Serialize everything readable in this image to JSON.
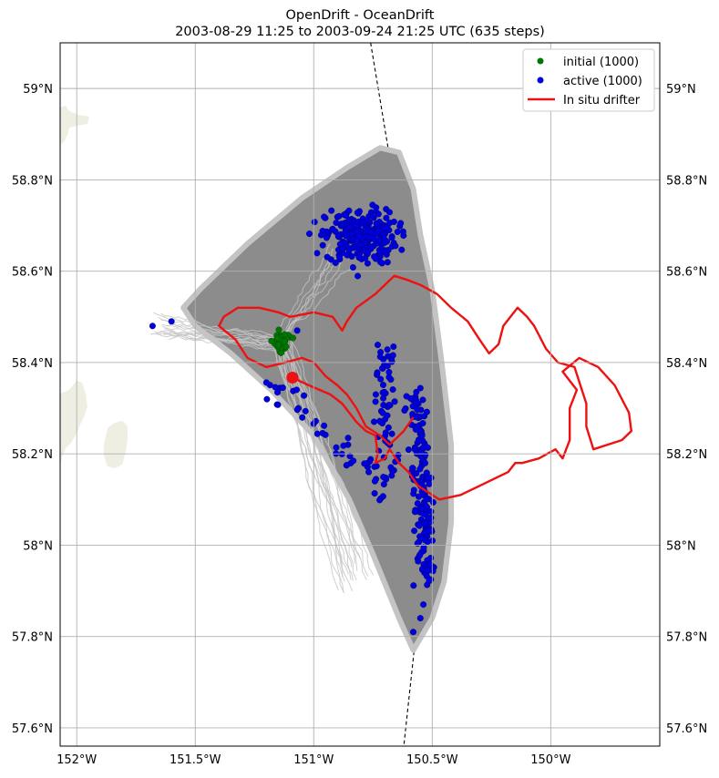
{
  "chart_data": {
    "type": "map-trajectory",
    "title_line1": "OpenDrift - OceanDrift",
    "title_line2": "2003-08-29 11:25 to 2003-09-24 21:25 UTC (635 steps)",
    "lon_range": [
      -152.07,
      -149.54
    ],
    "lat_range": [
      57.56,
      59.1
    ],
    "x_ticks": [
      {
        "value": -152.0,
        "label": "152°W"
      },
      {
        "value": -151.5,
        "label": "151.5°W"
      },
      {
        "value": -151.0,
        "label": "151°W"
      },
      {
        "value": -150.5,
        "label": "150.5°W"
      },
      {
        "value": -150.0,
        "label": "150°W"
      }
    ],
    "y_ticks": [
      {
        "value": 57.6,
        "label": "57.6°N"
      },
      {
        "value": 57.8,
        "label": "57.8°N"
      },
      {
        "value": 58.0,
        "label": "58°N"
      },
      {
        "value": 58.2,
        "label": "58.2°N"
      },
      {
        "value": 58.4,
        "label": "58.4°N"
      },
      {
        "value": 58.6,
        "label": "58.6°N"
      },
      {
        "value": 58.8,
        "label": "58.8°N"
      },
      {
        "value": 59.0,
        "label": "59°N"
      }
    ],
    "grid": true,
    "legend_position": "top-right",
    "legend": [
      {
        "label": "initial (1000)",
        "color": "#007800",
        "kind": "dot"
      },
      {
        "label": "active (1000)",
        "color": "#0000dd",
        "kind": "dot"
      },
      {
        "label": "In situ drifter",
        "color": "#ee1111",
        "kind": "line"
      }
    ],
    "colors": {
      "trajectory": "#8c8c8c",
      "trajectory_light": "#c4c4c4",
      "land": "#eeeee2",
      "boundary": "#000000"
    },
    "initial_cluster": {
      "center_lon": -151.14,
      "center_lat": 58.445,
      "count": 1000
    },
    "drifter_end": {
      "lon": -151.09,
      "lat": 58.367
    },
    "spread_envelope": [
      [
        -151.55,
        58.52
      ],
      [
        -151.48,
        58.56
      ],
      [
        -151.28,
        58.66
      ],
      [
        -151.05,
        58.76
      ],
      [
        -150.85,
        58.83
      ],
      [
        -150.72,
        58.87
      ],
      [
        -150.64,
        58.86
      ],
      [
        -150.58,
        58.78
      ],
      [
        -150.55,
        58.68
      ],
      [
        -150.5,
        58.56
      ],
      [
        -150.46,
        58.4
      ],
      [
        -150.42,
        58.22
      ],
      [
        -150.42,
        58.05
      ],
      [
        -150.45,
        57.92
      ],
      [
        -150.5,
        57.84
      ],
      [
        -150.58,
        57.77
      ],
      [
        -150.64,
        57.84
      ],
      [
        -150.75,
        57.98
      ],
      [
        -150.85,
        58.1
      ],
      [
        -151.0,
        58.24
      ],
      [
        -151.18,
        58.34
      ],
      [
        -151.35,
        58.42
      ],
      [
        -151.5,
        58.48
      ]
    ],
    "in_situ_drifter_track": [
      [
        -151.09,
        58.367
      ],
      [
        -151.02,
        58.35
      ],
      [
        -150.93,
        58.33
      ],
      [
        -150.88,
        58.31
      ],
      [
        -150.82,
        58.27
      ],
      [
        -150.78,
        58.25
      ],
      [
        -150.74,
        58.24
      ],
      [
        -150.73,
        58.2
      ],
      [
        -150.74,
        58.18
      ],
      [
        -150.7,
        58.19
      ],
      [
        -150.68,
        58.21
      ],
      [
        -150.64,
        58.18
      ],
      [
        -150.6,
        58.16
      ],
      [
        -150.56,
        58.13
      ],
      [
        -150.5,
        58.11
      ],
      [
        -150.47,
        58.1
      ],
      [
        -150.38,
        58.11
      ],
      [
        -150.3,
        58.13
      ],
      [
        -150.22,
        58.15
      ],
      [
        -150.18,
        58.16
      ],
      [
        -150.15,
        58.18
      ],
      [
        -150.12,
        58.18
      ],
      [
        -150.05,
        58.19
      ],
      [
        -149.98,
        58.21
      ],
      [
        -149.95,
        58.19
      ],
      [
        -149.92,
        58.23
      ],
      [
        -149.92,
        58.3
      ],
      [
        -149.89,
        58.34
      ],
      [
        -149.92,
        58.36
      ],
      [
        -149.95,
        58.38
      ],
      [
        -149.88,
        58.41
      ],
      [
        -149.8,
        58.39
      ],
      [
        -149.73,
        58.35
      ],
      [
        -149.67,
        58.29
      ],
      [
        -149.66,
        58.25
      ],
      [
        -149.7,
        58.23
      ],
      [
        -149.76,
        58.22
      ],
      [
        -149.82,
        58.21
      ],
      [
        -149.85,
        58.26
      ],
      [
        -149.85,
        58.31
      ],
      [
        -149.9,
        58.39
      ],
      [
        -149.97,
        58.4
      ],
      [
        -150.02,
        58.43
      ],
      [
        -150.07,
        58.48
      ],
      [
        -150.1,
        58.5
      ],
      [
        -150.14,
        58.52
      ],
      [
        -150.2,
        58.48
      ],
      [
        -150.22,
        58.44
      ],
      [
        -150.26,
        58.42
      ],
      [
        -150.3,
        58.45
      ],
      [
        -150.35,
        58.49
      ],
      [
        -150.42,
        58.52
      ],
      [
        -150.48,
        58.55
      ],
      [
        -150.55,
        58.57
      ],
      [
        -150.6,
        58.58
      ],
      [
        -150.66,
        58.59
      ],
      [
        -150.7,
        58.57
      ],
      [
        -150.74,
        58.55
      ],
      [
        -150.82,
        58.52
      ],
      [
        -150.86,
        58.49
      ],
      [
        -150.88,
        58.47
      ],
      [
        -150.92,
        58.5
      ],
      [
        -151.0,
        58.51
      ],
      [
        -151.1,
        58.5
      ],
      [
        -151.15,
        58.51
      ],
      [
        -151.23,
        58.52
      ],
      [
        -151.32,
        58.52
      ],
      [
        -151.38,
        58.5
      ],
      [
        -151.4,
        58.48
      ],
      [
        -151.33,
        58.45
      ],
      [
        -151.28,
        58.41
      ],
      [
        -151.2,
        58.39
      ],
      [
        -151.12,
        58.4
      ],
      [
        -151.05,
        58.41
      ],
      [
        -151.0,
        58.4
      ],
      [
        -150.95,
        58.37
      ],
      [
        -150.9,
        58.35
      ],
      [
        -150.86,
        58.33
      ],
      [
        -150.82,
        58.3
      ],
      [
        -150.78,
        58.26
      ],
      [
        -150.72,
        58.24
      ],
      [
        -150.68,
        58.22
      ],
      [
        -150.62,
        58.25
      ],
      [
        -150.58,
        58.28
      ]
    ]
  }
}
